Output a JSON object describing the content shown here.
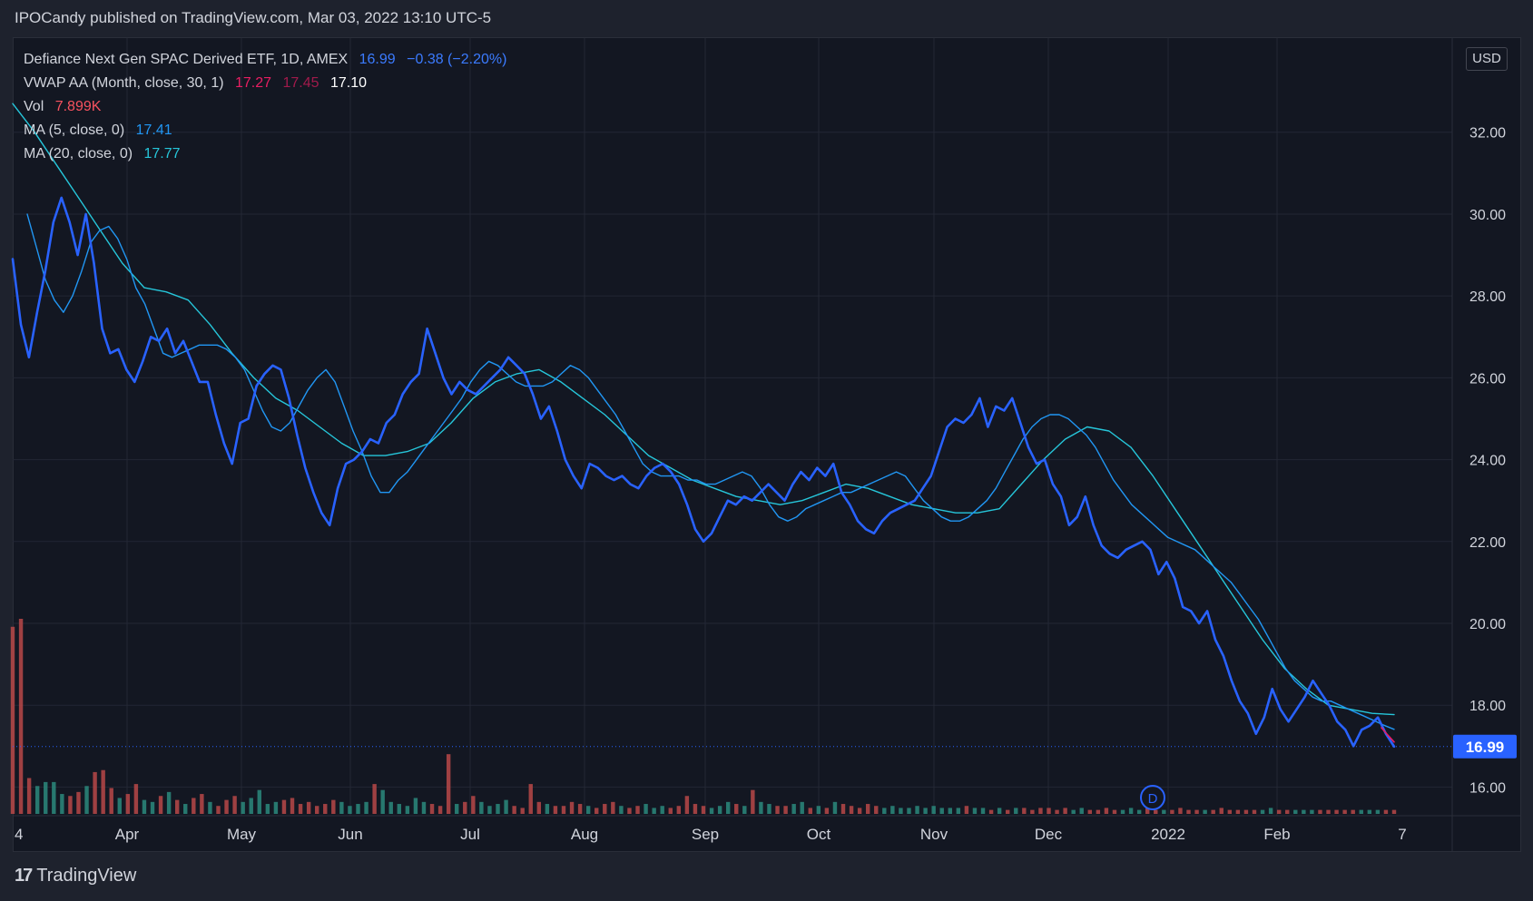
{
  "header": {
    "published": "IPOCandy published on TradingView.com, Mar 03, 2022 13:10 UTC-5"
  },
  "legend": {
    "symbol": {
      "name": "Defiance Next Gen SPAC Derived ETF, 1D, AMEX",
      "price": "16.99",
      "change": "−0.38 (−2.20%)"
    },
    "vwap": {
      "name": "VWAP AA (Month, close, 30, 1)",
      "v1": "17.27",
      "v2": "17.45",
      "v3": "17.10"
    },
    "vol": {
      "name": "Vol",
      "value": "7.899K"
    },
    "ma5": {
      "name": "MA (5, close, 0)",
      "value": "17.41"
    },
    "ma20": {
      "name": "MA (20, close, 0)",
      "value": "17.77"
    }
  },
  "axis": {
    "currency": "USD",
    "price_badge": "16.99",
    "dividend_marker": "D"
  },
  "footer": {
    "brand": "TradingView",
    "brand_mark": "17"
  },
  "chart_data": {
    "type": "line",
    "x_ticks": [
      "4",
      "Apr",
      "May",
      "Jun",
      "Jul",
      "Aug",
      "Sep",
      "Oct",
      "Nov",
      "Dec",
      "2022",
      "Feb",
      "7"
    ],
    "y_ticks": [
      "16.00",
      "18.00",
      "20.00",
      "22.00",
      "24.00",
      "26.00",
      "28.00",
      "30.00",
      "32.00"
    ],
    "ylim": [
      15.3,
      34.3
    ],
    "last_price": 16.99,
    "grid": true,
    "series": [
      {
        "name": "Defiance Next Gen SPAC Derived ETF",
        "color": "#2962ff",
        "values": [
          28.9,
          27.3,
          26.5,
          27.6,
          28.6,
          29.8,
          30.4,
          29.8,
          29.0,
          30.0,
          28.8,
          27.2,
          26.6,
          26.7,
          26.2,
          25.9,
          26.4,
          27.0,
          26.9,
          27.2,
          26.6,
          26.9,
          26.4,
          25.9,
          25.9,
          25.1,
          24.4,
          23.9,
          24.9,
          25.0,
          25.8,
          26.1,
          26.3,
          26.2,
          25.5,
          24.6,
          23.8,
          23.2,
          22.7,
          22.4,
          23.3,
          23.9,
          24.0,
          24.2,
          24.5,
          24.4,
          24.9,
          25.1,
          25.6,
          25.9,
          26.1,
          27.2,
          26.6,
          26.0,
          25.6,
          25.9,
          25.7,
          25.6,
          25.8,
          26.0,
          26.2,
          26.5,
          26.3,
          26.1,
          25.6,
          25.0,
          25.3,
          24.7,
          24.0,
          23.6,
          23.3,
          23.9,
          23.8,
          23.6,
          23.5,
          23.6,
          23.4,
          23.3,
          23.6,
          23.8,
          23.9,
          23.7,
          23.4,
          22.9,
          22.3,
          22.0,
          22.2,
          22.6,
          23.0,
          22.9,
          23.1,
          23.0,
          23.2,
          23.4,
          23.2,
          23.0,
          23.4,
          23.7,
          23.5,
          23.8,
          23.6,
          23.9,
          23.2,
          22.9,
          22.5,
          22.3,
          22.2,
          22.5,
          22.7,
          22.8,
          22.9,
          23.0,
          23.3,
          23.6,
          24.2,
          24.8,
          25.0,
          24.9,
          25.1,
          25.5,
          24.8,
          25.3,
          25.2,
          25.5,
          24.9,
          24.3,
          23.9,
          24.0,
          23.4,
          23.1,
          22.4,
          22.6,
          23.1,
          22.4,
          21.9,
          21.7,
          21.6,
          21.8,
          21.9,
          22.0,
          21.8,
          21.2,
          21.5,
          21.1,
          20.4,
          20.3,
          20.0,
          20.3,
          19.6,
          19.2,
          18.6,
          18.1,
          17.8,
          17.3,
          17.7,
          18.4,
          17.9,
          17.6,
          17.9,
          18.2,
          18.6,
          18.3,
          18.0,
          17.6,
          17.4,
          17.0,
          17.4,
          17.5,
          17.7,
          17.3,
          16.99
        ]
      },
      {
        "name": "MA (5, close, 0)",
        "color": "#2196f3",
        "values": [
          30.0,
          29.2,
          28.4,
          27.9,
          27.6,
          28.0,
          28.6,
          29.3,
          29.6,
          29.7,
          29.4,
          28.9,
          28.2,
          27.8,
          27.2,
          26.6,
          26.5,
          26.6,
          26.7,
          26.8,
          26.8,
          26.8,
          26.7,
          26.5,
          26.2,
          25.7,
          25.2,
          24.8,
          24.7,
          24.9,
          25.3,
          25.7,
          26.0,
          26.2,
          25.9,
          25.3,
          24.7,
          24.2,
          23.6,
          23.2,
          23.2,
          23.5,
          23.7,
          24.0,
          24.3,
          24.6,
          24.9,
          25.2,
          25.5,
          25.9,
          26.2,
          26.4,
          26.3,
          26.1,
          25.9,
          25.8,
          25.8,
          25.8,
          25.9,
          26.1,
          26.3,
          26.2,
          26.0,
          25.7,
          25.4,
          25.1,
          24.7,
          24.3,
          23.9,
          23.7,
          23.6,
          23.6,
          23.6,
          23.5,
          23.5,
          23.4,
          23.4,
          23.5,
          23.6,
          23.7,
          23.6,
          23.3,
          22.9,
          22.6,
          22.5,
          22.6,
          22.8,
          22.9,
          23.0,
          23.1,
          23.2,
          23.2,
          23.3,
          23.4,
          23.5,
          23.6,
          23.7,
          23.6,
          23.3,
          23.0,
          22.8,
          22.6,
          22.5,
          22.5,
          22.6,
          22.8,
          23.0,
          23.3,
          23.7,
          24.1,
          24.5,
          24.8,
          25.0,
          25.1,
          25.1,
          25.0,
          24.8,
          24.6,
          24.3,
          23.9,
          23.5,
          23.2,
          22.9,
          22.7,
          22.5,
          22.3,
          22.1,
          22.0,
          21.9,
          21.8,
          21.6,
          21.4,
          21.2,
          21.0,
          20.7,
          20.4,
          20.1,
          19.7,
          19.3,
          18.9,
          18.6,
          18.4,
          18.2,
          18.1,
          18.1,
          18.0,
          17.9,
          17.8,
          17.7,
          17.6,
          17.5,
          17.41
        ]
      },
      {
        "name": "MA (20, close, 0)",
        "color": "#26c6da",
        "values": [
          32.7,
          32.0,
          31.2,
          30.4,
          29.6,
          28.8,
          28.2,
          28.1,
          27.9,
          27.3,
          26.6,
          26.0,
          25.5,
          25.2,
          24.8,
          24.4,
          24.1,
          24.1,
          24.2,
          24.4,
          24.9,
          25.5,
          25.9,
          26.1,
          26.2,
          25.9,
          25.5,
          25.1,
          24.6,
          24.1,
          23.8,
          23.5,
          23.3,
          23.1,
          23.0,
          22.9,
          23.0,
          23.2,
          23.4,
          23.3,
          23.1,
          22.9,
          22.8,
          22.7,
          22.7,
          22.8,
          23.4,
          24.0,
          24.5,
          24.8,
          24.7,
          24.3,
          23.6,
          22.8,
          22.0,
          21.2,
          20.4,
          19.6,
          18.9,
          18.4,
          18.0,
          17.9,
          17.8,
          17.77
        ]
      },
      {
        "name": "VWAP AA (Month, close, 30, 1)",
        "color": "#e91e63",
        "values": [
          17.45,
          17.27,
          17.1
        ]
      }
    ],
    "volume": {
      "name": "Vol",
      "up_color": "#2b8a7c",
      "down_color": "#b84848",
      "values": [
        9.4,
        9.8,
        1.8,
        1.4,
        1.6,
        1.6,
        1.0,
        0.9,
        1.1,
        1.4,
        2.1,
        2.2,
        1.3,
        0.8,
        1.0,
        1.5,
        0.7,
        0.6,
        0.9,
        1.1,
        0.7,
        0.5,
        0.8,
        1.0,
        0.6,
        0.4,
        0.7,
        0.9,
        0.6,
        0.8,
        1.2,
        0.5,
        0.6,
        0.7,
        0.8,
        0.5,
        0.6,
        0.4,
        0.5,
        0.7,
        0.6,
        0.4,
        0.5,
        0.6,
        1.5,
        1.2,
        0.6,
        0.5,
        0.4,
        0.8,
        0.6,
        0.5,
        0.4,
        3.0,
        0.5,
        0.6,
        0.9,
        0.6,
        0.4,
        0.5,
        0.7,
        0.4,
        0.3,
        1.5,
        0.6,
        0.5,
        0.4,
        0.4,
        0.6,
        0.5,
        0.4,
        0.3,
        0.5,
        0.6,
        0.4,
        0.3,
        0.4,
        0.5,
        0.3,
        0.4,
        0.3,
        0.4,
        0.9,
        0.5,
        0.4,
        0.3,
        0.4,
        0.6,
        0.5,
        0.4,
        1.2,
        0.6,
        0.5,
        0.4,
        0.4,
        0.5,
        0.6,
        0.3,
        0.4,
        0.3,
        0.6,
        0.5,
        0.4,
        0.3,
        0.5,
        0.4,
        0.3,
        0.4,
        0.3,
        0.3,
        0.4,
        0.3,
        0.4,
        0.3,
        0.3,
        0.3,
        0.4,
        0.3,
        0.3,
        0.2,
        0.3,
        0.2,
        0.3,
        0.3,
        0.2,
        0.3,
        0.3,
        0.2,
        0.3,
        0.2,
        0.3,
        0.2,
        0.2,
        0.3,
        0.2,
        0.2,
        0.3,
        0.2,
        0.3,
        0.2,
        0.2,
        0.2,
        0.3,
        0.2,
        0.2,
        0.2,
        0.2,
        0.3,
        0.2,
        0.2,
        0.2,
        0.2,
        0.2,
        0.3,
        0.2,
        0.2,
        0.2,
        0.2,
        0.2,
        0.2,
        0.2,
        0.2,
        0.2,
        0.2,
        0.2,
        0.2,
        0.2,
        0.2,
        0.2
      ]
    }
  }
}
